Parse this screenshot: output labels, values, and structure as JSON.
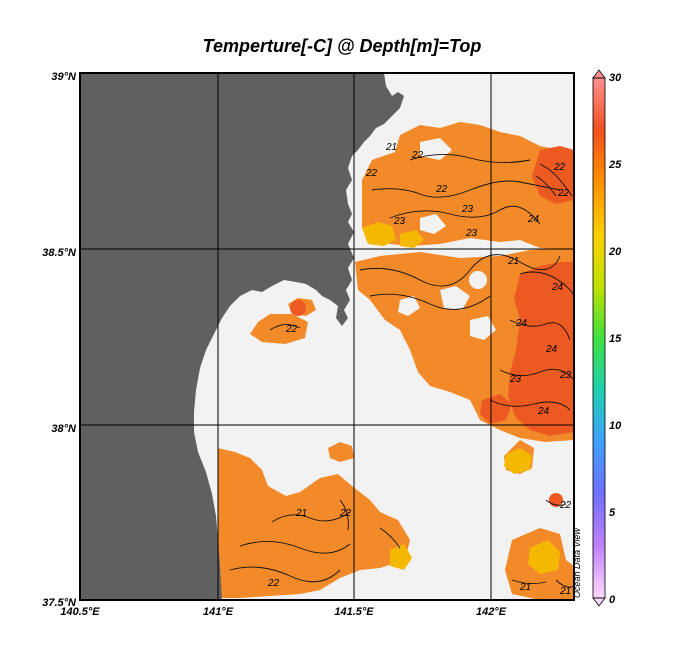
{
  "chart_data": {
    "type": "heatmap",
    "title": "Temperture[-C] @ Depth[m]=Top",
    "x_ticks": [
      "140.5°E",
      "141°E",
      "141.5°E",
      "142°E"
    ],
    "y_ticks": [
      "39°N",
      "38.5°N",
      "38°N",
      "37.5°N"
    ],
    "xlim": [
      140.5,
      142.3
    ],
    "ylim": [
      37.5,
      39.0
    ],
    "grid": true,
    "colorbar": {
      "ticks": [
        "30",
        "25",
        "20",
        "15",
        "10",
        "5",
        "0"
      ],
      "range": [
        0,
        30
      ],
      "colors": [
        "#ffd8ff",
        "#c080ff",
        "#7070ff",
        "#40a0ff",
        "#20d0b0",
        "#40e040",
        "#c0e000",
        "#ffd000",
        "#ff9000",
        "#f05020",
        "#ff9090"
      ]
    },
    "contour_labels": [
      "21",
      "22",
      "22",
      "23",
      "23",
      "24",
      "21",
      "22",
      "22",
      "23",
      "24",
      "23",
      "24",
      "24",
      "23",
      "22",
      "21",
      "22",
      "22",
      "21",
      "22",
      "24",
      "22",
      "21"
    ],
    "credit": "Ocean Data View",
    "colors": {
      "land": "#606060",
      "no_data": "#f2f2f2"
    }
  }
}
